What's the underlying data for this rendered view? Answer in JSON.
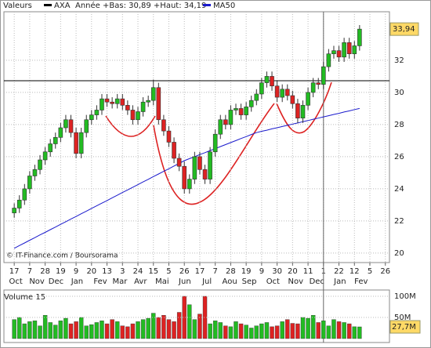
{
  "chart_data": [
    {
      "type": "candlestick",
      "legend": [
        "Valeurs",
        "AXA",
        "Année +Bas: 30,89 +Haut: 34,19",
        "MA50"
      ],
      "credit": "© IT-Finance.com / Boursorama",
      "up_color": "#22bb22",
      "down_color": "#dd2222",
      "open": [
        22.5,
        22.8,
        23.3,
        24.0,
        24.8,
        25.2,
        25.8,
        26.3,
        26.8,
        27.2,
        27.8,
        28.3,
        27.5,
        26.2,
        27.5,
        28.3,
        28.6,
        28.9,
        29.6,
        29.4,
        29.3,
        29.6,
        29.2,
        28.9,
        28.3,
        28.8,
        29.4,
        29.5,
        30.3,
        28.3,
        27.6,
        26.9,
        25.9,
        25.4,
        24.0,
        24.6,
        26.0,
        25.2,
        24.6,
        26.3,
        27.4,
        28.3,
        28.0,
        28.9,
        29.0,
        28.6,
        29.1,
        29.5,
        29.9,
        30.6,
        31.0,
        30.4,
        29.7,
        30.2,
        29.8,
        29.3,
        28.4,
        29.2,
        30.0,
        30.6,
        30.5,
        31.6,
        32.4,
        32.6,
        32.2,
        33.1,
        32.4,
        32.9
      ],
      "high": [
        23.1,
        23.6,
        24.3,
        25.1,
        25.5,
        26.1,
        26.6,
        27.1,
        27.5,
        28.1,
        28.6,
        28.6,
        27.8,
        27.8,
        28.6,
        28.9,
        29.2,
        29.9,
        29.9,
        29.7,
        29.9,
        29.9,
        29.5,
        29.2,
        29.1,
        29.7,
        29.8,
        30.8,
        30.6,
        28.6,
        27.9,
        27.2,
        26.2,
        25.7,
        24.9,
        26.3,
        26.3,
        25.5,
        26.6,
        27.7,
        28.6,
        28.6,
        29.2,
        29.3,
        29.3,
        29.4,
        29.8,
        30.2,
        30.9,
        31.3,
        31.3,
        30.7,
        30.5,
        30.5,
        30.1,
        29.6,
        29.5,
        30.3,
        30.9,
        30.9,
        31.9,
        32.7,
        32.9,
        32.9,
        33.4,
        33.4,
        33.2,
        34.19
      ],
      "low": [
        22.2,
        22.5,
        23.0,
        23.7,
        24.5,
        24.9,
        25.5,
        26.0,
        26.5,
        26.9,
        27.5,
        27.2,
        25.9,
        25.9,
        27.2,
        28.0,
        28.3,
        28.6,
        29.1,
        29.0,
        29.0,
        28.9,
        28.6,
        28.0,
        28.0,
        28.5,
        29.1,
        29.2,
        28.0,
        27.3,
        26.6,
        25.6,
        25.1,
        23.7,
        23.7,
        24.3,
        24.9,
        24.3,
        24.3,
        26.0,
        27.1,
        27.7,
        27.7,
        28.6,
        28.3,
        28.3,
        28.8,
        29.2,
        29.6,
        30.3,
        30.1,
        29.4,
        29.4,
        29.5,
        29.0,
        28.1,
        28.1,
        28.9,
        29.7,
        30.2,
        30.2,
        31.3,
        32.1,
        31.9,
        31.9,
        32.1,
        32.1,
        32.6
      ],
      "close": [
        22.8,
        23.3,
        24.0,
        24.8,
        25.2,
        25.8,
        26.3,
        26.8,
        27.2,
        27.8,
        28.3,
        27.5,
        26.2,
        27.5,
        28.3,
        28.6,
        28.9,
        29.6,
        29.4,
        29.3,
        29.6,
        29.2,
        28.9,
        28.3,
        28.8,
        29.4,
        29.5,
        30.3,
        28.3,
        27.6,
        26.9,
        25.9,
        25.4,
        24.0,
        24.6,
        26.0,
        25.2,
        24.6,
        26.3,
        27.4,
        28.3,
        28.0,
        28.9,
        29.0,
        28.6,
        29.1,
        29.5,
        29.9,
        30.6,
        31.0,
        30.4,
        29.7,
        30.2,
        29.8,
        29.3,
        28.4,
        29.2,
        30.0,
        30.6,
        30.5,
        31.6,
        32.4,
        32.6,
        32.2,
        33.1,
        32.4,
        32.9,
        33.94
      ],
      "last_label": "33,94",
      "ma": {
        "name": "MA50",
        "color": "#1a1acc",
        "values": [
          20.3,
          20.47,
          20.63,
          20.8,
          20.96,
          21.13,
          21.29,
          21.46,
          21.62,
          21.79,
          21.95,
          22.12,
          22.28,
          22.45,
          22.61,
          22.78,
          22.94,
          23.11,
          23.27,
          23.44,
          23.6,
          23.77,
          23.93,
          24.1,
          24.26,
          24.43,
          24.59,
          24.76,
          24.92,
          25.09,
          25.25,
          25.42,
          25.58,
          25.75,
          25.88,
          26.0,
          26.13,
          26.25,
          26.38,
          26.5,
          26.63,
          26.75,
          26.88,
          27.0,
          27.13,
          27.25,
          27.38,
          27.5,
          27.58,
          27.65,
          27.73,
          27.8,
          27.88,
          27.95,
          28.03,
          28.1,
          28.18,
          28.25,
          28.33,
          28.4,
          28.48,
          28.55,
          28.63,
          28.7,
          28.78,
          28.85,
          28.93,
          29.0
        ]
      },
      "hline": 30.73,
      "vline": 60,
      "xlim": [
        -2,
        72.8
      ],
      "ylim": [
        19.41,
        35.02
      ],
      "yticks": [
        20,
        22,
        24,
        26,
        28,
        30,
        32
      ],
      "grid": true,
      "xticks": [
        {
          "value": 0,
          "label": "17"
        },
        {
          "value": 3,
          "label": "7"
        },
        {
          "value": 6,
          "label": "28"
        },
        {
          "value": 9,
          "label": "19"
        },
        {
          "value": 12,
          "label": "9"
        },
        {
          "value": 15,
          "label": "20"
        },
        {
          "value": 18,
          "label": "13"
        },
        {
          "value": 21,
          "label": "3"
        },
        {
          "value": 24,
          "label": "24"
        },
        {
          "value": 27,
          "label": "15"
        },
        {
          "value": 30,
          "label": "5"
        },
        {
          "value": 33,
          "label": "26"
        },
        {
          "value": 36,
          "label": "17"
        },
        {
          "value": 39,
          "label": "7"
        },
        {
          "value": 42,
          "label": "28"
        },
        {
          "value": 45,
          "label": "19"
        },
        {
          "value": 48,
          "label": "9"
        },
        {
          "value": 51,
          "label": "30"
        },
        {
          "value": 54,
          "label": "20"
        },
        {
          "value": 57,
          "label": "11"
        },
        {
          "value": 60,
          "label": "1"
        },
        {
          "value": 63,
          "label": "22"
        },
        {
          "value": 66,
          "label": "12"
        },
        {
          "value": 69,
          "label": "5"
        },
        {
          "value": 72,
          "label": "26"
        }
      ],
      "month_ticks": [
        {
          "value": 0.3,
          "label": "Oct"
        },
        {
          "value": 4.4,
          "label": "Nov"
        },
        {
          "value": 8.1,
          "label": "Dec"
        },
        {
          "value": 12.2,
          "label": "Jan"
        },
        {
          "value": 16.7,
          "label": "Fev"
        },
        {
          "value": 20.5,
          "label": "Mar"
        },
        {
          "value": 24.5,
          "label": "Avr"
        },
        {
          "value": 28.7,
          "label": "Mai"
        },
        {
          "value": 33.1,
          "label": "Jun"
        },
        {
          "value": 37.4,
          "label": "Jul"
        },
        {
          "value": 41.8,
          "label": "Aou"
        },
        {
          "value": 45.6,
          "label": "Sep"
        },
        {
          "value": 50.2,
          "label": "Oct"
        },
        {
          "value": 54.6,
          "label": "Nov"
        },
        {
          "value": 58.7,
          "label": "Dec"
        },
        {
          "value": 63.2,
          "label": "Jan"
        },
        {
          "value": 67.3,
          "label": "Fev"
        }
      ]
    },
    {
      "type": "bar",
      "title": "Volume 15",
      "values": [
        45,
        50,
        35,
        40,
        42,
        30,
        55,
        38,
        32,
        42,
        48,
        35,
        40,
        50,
        30,
        33,
        38,
        42,
        35,
        45,
        40,
        30,
        28,
        35,
        40,
        45,
        48,
        60,
        50,
        55,
        45,
        40,
        62,
        100,
        80,
        45,
        58,
        100,
        35,
        42,
        38,
        30,
        28,
        40,
        35,
        32,
        25,
        30,
        35,
        38,
        28,
        30,
        40,
        45,
        36,
        35,
        50,
        48,
        55,
        38,
        42,
        30,
        45,
        40,
        38,
        35,
        28,
        27.7
      ],
      "last_label": "27,7M",
      "ylim": [
        -9.3,
        114.8
      ],
      "yticks": [
        {
          "value": 100,
          "label": "100M"
        },
        {
          "value": 50,
          "label": "50M"
        }
      ]
    }
  ]
}
